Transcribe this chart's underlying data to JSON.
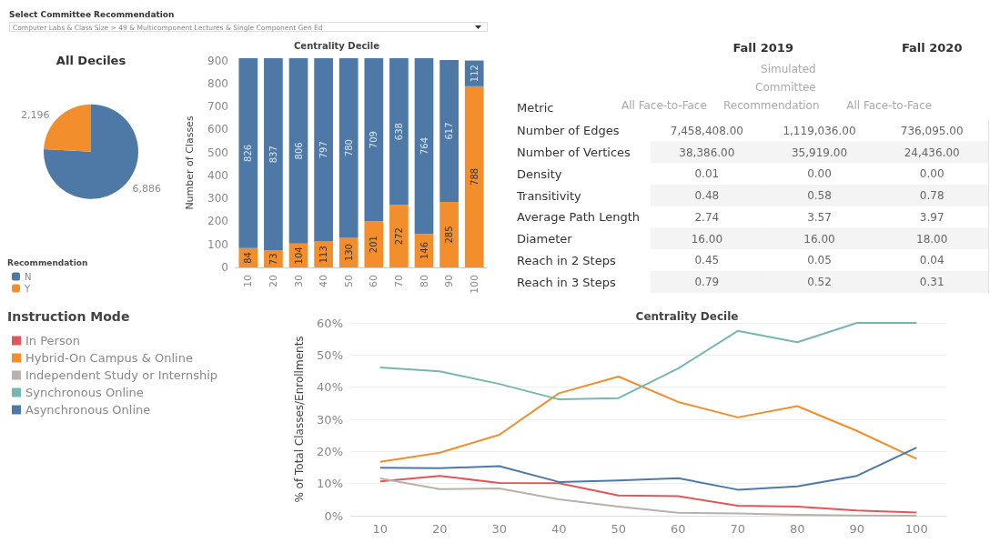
{
  "chart_data": [
    {
      "type": "pie",
      "title": "All Deciles",
      "categories": [
        "N",
        "Y"
      ],
      "values": [
        6886,
        2196
      ],
      "colors": [
        "#4e79a7",
        "#f28e2b"
      ],
      "value_labels": [
        "6,886",
        "2,196"
      ],
      "legend": "bottom left",
      "legend_title": "Recommendation",
      "annotations": [
        "Select Committee Recommendation",
        "Computer Labs & Class Size > 49 & Multicomponent Lectures & Single Component Gen Ed"
      ]
    },
    {
      "type": "bar",
      "title": "Centrality Decile",
      "ylabel": "Number of Classes",
      "stacked": true,
      "data_labels": true,
      "categories": [
        "10",
        "20",
        "30",
        "40",
        "50",
        "60",
        "70",
        "80",
        "90",
        "100"
      ],
      "series": [
        {
          "color": "#f28e2b",
          "values": [
            84,
            73,
            104,
            113,
            130,
            201,
            272,
            146,
            285,
            788
          ]
        },
        {
          "color": "#4e79a7",
          "values": [
            826,
            837,
            806,
            797,
            780,
            709,
            638,
            764,
            617,
            112
          ]
        }
      ],
      "ylim": [
        0,
        910
      ],
      "yticks": [
        0,
        100,
        200,
        300,
        400,
        500,
        600,
        700,
        800,
        900
      ]
    },
    {
      "type": "heatmap",
      "ylabel": "Metric",
      "annotations": [
        "Fall 2019",
        "Fall 2020"
      ],
      "categories": [
        "All Face-to-Face",
        "Simulated Committee Recommendation",
        "All Face-to-Face"
      ],
      "y_categories": [
        "Number of Edges",
        "Number of Vertices",
        "Density",
        "Transitivity",
        "Average Path Length",
        "Diameter",
        "Reach in 2 Steps",
        "Reach in 3 Steps"
      ],
      "cells": [
        [
          7458408,
          1119036,
          736095
        ],
        [
          38386,
          35919,
          24436
        ],
        [
          0.01,
          0,
          0
        ],
        [
          0.48,
          0.58,
          0.78
        ],
        [
          2.74,
          3.57,
          3.97
        ],
        [
          16,
          16,
          18
        ],
        [
          0.45,
          0.05,
          0.04
        ],
        [
          0.79,
          0.52,
          0.31
        ]
      ],
      "cell_labels": [
        [
          "7,458,408.00",
          "1,119,036.00",
          "736,095.00"
        ],
        [
          "38,386.00",
          "35,919.00",
          "24,436.00"
        ],
        [
          "0.01",
          "0.00",
          "0.00"
        ],
        [
          "0.48",
          "0.58",
          "0.78"
        ],
        [
          "2.74",
          "3.57",
          "3.97"
        ],
        [
          "16.00",
          "16.00",
          "18.00"
        ],
        [
          "0.45",
          "0.05",
          "0.04"
        ],
        [
          "0.79",
          "0.52",
          "0.31"
        ]
      ]
    },
    {
      "type": "line",
      "title": "Centrality Decile",
      "ylabel": "% of Total Classes/Enrollments",
      "legend": "left",
      "legend_title": "Instruction Mode",
      "grid": "y",
      "marker": "none",
      "categories": [
        "10",
        "20",
        "30",
        "40",
        "50",
        "60",
        "70",
        "80",
        "90",
        "100"
      ],
      "series": [
        {
          "name": "In Person",
          "color": "#e15759",
          "values": [
            10.7,
            12.4,
            10.2,
            10.1,
            6.3,
            6.1,
            3.1,
            2.8,
            1.6,
            1.0
          ]
        },
        {
          "name": "Hybrid-On Campus & Online",
          "color": "#f28e2b",
          "values": [
            16.8,
            19.6,
            25.2,
            38.1,
            43.3,
            35.4,
            30.6,
            34.1,
            26.4,
            17.7
          ]
        },
        {
          "name": "Independent Study or Internship",
          "color": "#bab0ac",
          "values": [
            11.6,
            8.3,
            8.5,
            5.1,
            2.8,
            0.9,
            0.7,
            0.3,
            0.1,
            0
          ]
        },
        {
          "name": "Synchronous Online",
          "color": "#76b7b2",
          "values": [
            46.1,
            44.9,
            41.0,
            36.2,
            36.6,
            45.8,
            57.5,
            54.0,
            60,
            60
          ]
        },
        {
          "name": "Asynchronous Online",
          "color": "#4e79a7",
          "values": [
            14.9,
            14.8,
            15.4,
            10.5,
            11.0,
            11.7,
            8.1,
            9.1,
            12.4,
            21.2
          ]
        }
      ],
      "ylim": [
        0,
        60
      ],
      "yticks": [
        {
          "value": 0,
          "label": "0%"
        },
        {
          "value": 10,
          "label": "10%"
        },
        {
          "value": 20,
          "label": "20%"
        },
        {
          "value": 30,
          "label": "30%"
        },
        {
          "value": 40,
          "label": "40%"
        },
        {
          "value": 50,
          "label": "50%"
        },
        {
          "value": 60,
          "label": "60%"
        }
      ]
    }
  ]
}
